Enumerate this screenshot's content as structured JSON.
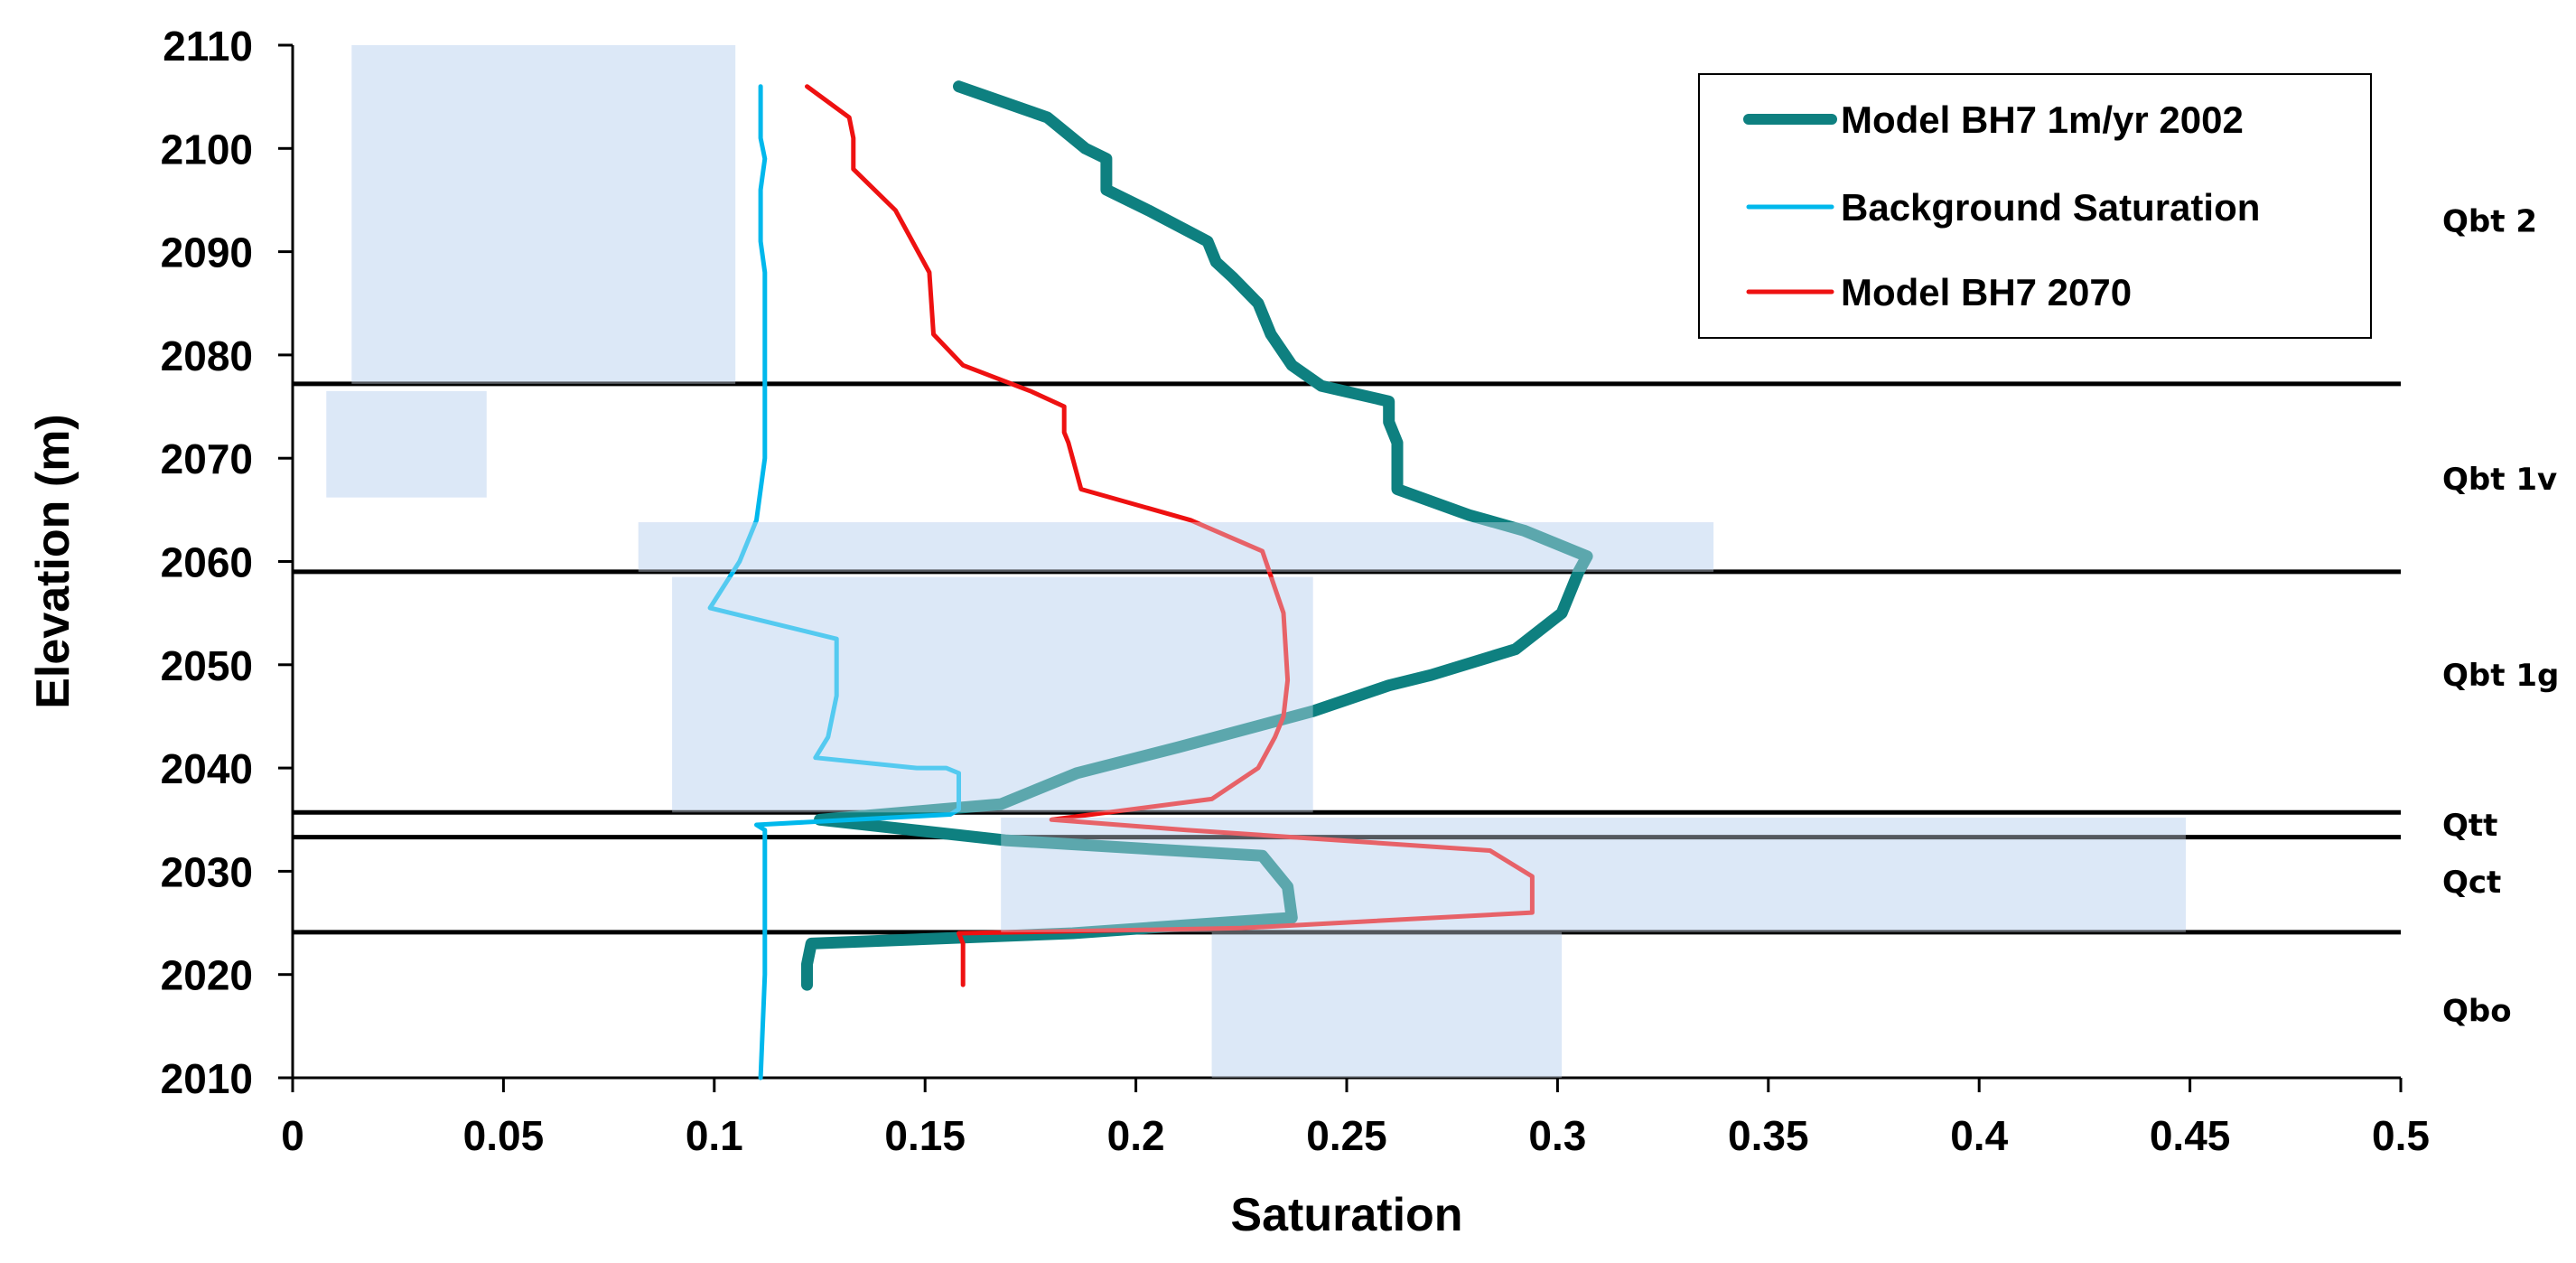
{
  "chart_data": {
    "type": "line",
    "xlabel": "Saturation",
    "ylabel": "Elevation (m)",
    "xlim": [
      0,
      0.5
    ],
    "ylim": [
      2010,
      2110
    ],
    "x_ticks": [
      0,
      0.05,
      0.1,
      0.15,
      0.2,
      0.25,
      0.3,
      0.35,
      0.4,
      0.45,
      0.5
    ],
    "x_tick_labels": [
      "0",
      "0.05",
      "0.1",
      "0.15",
      "0.2",
      "0.25",
      "0.3",
      "0.35",
      "0.4",
      "0.45",
      "0.5"
    ],
    "y_ticks": [
      2010,
      2020,
      2030,
      2040,
      2050,
      2060,
      2070,
      2080,
      2090,
      2100,
      2110
    ],
    "y_tick_labels": [
      "2010",
      "2020",
      "2030",
      "2040",
      "2050",
      "2060",
      "2070",
      "2080",
      "2090",
      "2100",
      "2110"
    ],
    "legend_position": "top-right",
    "series": [
      {
        "name": "Model BH7 1m/yr 2002",
        "color": "#0e8080",
        "points": [
          [
            0.158,
            2106
          ],
          [
            0.179,
            2103
          ],
          [
            0.188,
            2100
          ],
          [
            0.193,
            2099
          ],
          [
            0.193,
            2096
          ],
          [
            0.203,
            2094
          ],
          [
            0.217,
            2091
          ],
          [
            0.219,
            2089
          ],
          [
            0.223,
            2087.5
          ],
          [
            0.229,
            2085
          ],
          [
            0.232,
            2082
          ],
          [
            0.237,
            2079
          ],
          [
            0.244,
            2077
          ],
          [
            0.26,
            2075.5
          ],
          [
            0.26,
            2073.5
          ],
          [
            0.262,
            2071.5
          ],
          [
            0.262,
            2067
          ],
          [
            0.279,
            2064.5
          ],
          [
            0.292,
            2063
          ],
          [
            0.307,
            2060.5
          ],
          [
            0.305,
            2059
          ],
          [
            0.301,
            2055
          ],
          [
            0.29,
            2051.5
          ],
          [
            0.27,
            2049
          ],
          [
            0.26,
            2048
          ],
          [
            0.242,
            2045.5
          ],
          [
            0.21,
            2042
          ],
          [
            0.186,
            2039.5
          ],
          [
            0.168,
            2036.5
          ],
          [
            0.125,
            2035
          ],
          [
            0.169,
            2033
          ],
          [
            0.23,
            2031.5
          ],
          [
            0.236,
            2028.5
          ],
          [
            0.237,
            2025.5
          ],
          [
            0.185,
            2024
          ],
          [
            0.123,
            2023
          ],
          [
            0.122,
            2021
          ],
          [
            0.122,
            2019
          ]
        ]
      },
      {
        "name": "Background Saturation",
        "color": "#00b8ec",
        "points": [
          [
            0.111,
            2106
          ],
          [
            0.111,
            2101
          ],
          [
            0.112,
            2099
          ],
          [
            0.111,
            2096
          ],
          [
            0.111,
            2093
          ],
          [
            0.111,
            2091
          ],
          [
            0.112,
            2088
          ],
          [
            0.112,
            2080
          ],
          [
            0.112,
            2070
          ],
          [
            0.11,
            2064
          ],
          [
            0.106,
            2060
          ],
          [
            0.099,
            2055.5
          ],
          [
            0.129,
            2052.5
          ],
          [
            0.129,
            2047
          ],
          [
            0.127,
            2043
          ],
          [
            0.124,
            2041
          ],
          [
            0.148,
            2040
          ],
          [
            0.155,
            2040
          ],
          [
            0.158,
            2039.5
          ],
          [
            0.158,
            2036
          ],
          [
            0.156,
            2035.5
          ],
          [
            0.11,
            2034.5
          ],
          [
            0.112,
            2034
          ],
          [
            0.112,
            2020
          ],
          [
            0.111,
            2010
          ]
        ]
      },
      {
        "name": "Model BH7 2070",
        "color": "#ee1111",
        "points": [
          [
            0.122,
            2106
          ],
          [
            0.132,
            2103
          ],
          [
            0.133,
            2101
          ],
          [
            0.133,
            2098
          ],
          [
            0.143,
            2094
          ],
          [
            0.151,
            2088
          ],
          [
            0.152,
            2082
          ],
          [
            0.159,
            2079
          ],
          [
            0.175,
            2076.5
          ],
          [
            0.183,
            2075
          ],
          [
            0.183,
            2072.5
          ],
          [
            0.184,
            2071.5
          ],
          [
            0.187,
            2067
          ],
          [
            0.213,
            2064
          ],
          [
            0.23,
            2061
          ],
          [
            0.235,
            2055
          ],
          [
            0.236,
            2048.5
          ],
          [
            0.235,
            2045
          ],
          [
            0.233,
            2043
          ],
          [
            0.229,
            2040
          ],
          [
            0.218,
            2037
          ],
          [
            0.18,
            2035
          ],
          [
            0.212,
            2034
          ],
          [
            0.284,
            2032
          ],
          [
            0.294,
            2029.5
          ],
          [
            0.294,
            2026
          ],
          [
            0.225,
            2024.5
          ],
          [
            0.158,
            2024
          ],
          [
            0.159,
            2023
          ],
          [
            0.159,
            2019
          ]
        ]
      }
    ],
    "layer_boundaries": [
      2077.2,
      2059,
      2035.7,
      2033.3,
      2024.1
    ],
    "layer_labels": [
      {
        "text": "Qbt 2",
        "elevation": 2093
      },
      {
        "text": "Qbt 1v",
        "elevation": 2068
      },
      {
        "text": "Qbt 1g",
        "elevation": 2049
      },
      {
        "text": "Qtt",
        "elevation": 2034.5
      },
      {
        "text": "Qct",
        "elevation": 2029
      },
      {
        "text": "Qbo",
        "elevation": 2016.5
      }
    ],
    "shaded_ranges": [
      {
        "x0": 0.014,
        "x1": 0.105,
        "y0": 2077.2,
        "y1": 2110
      },
      {
        "x0": 0.008,
        "x1": 0.046,
        "y0": 2066.2,
        "y1": 2076.5
      },
      {
        "x0": 0.082,
        "x1": 0.337,
        "y0": 2059,
        "y1": 2063.8
      },
      {
        "x0": 0.09,
        "x1": 0.242,
        "y0": 2035.7,
        "y1": 2058.5
      },
      {
        "x0": 0.168,
        "x1": 0.449,
        "y0": 2024.1,
        "y1": 2035.2
      },
      {
        "x0": 0.218,
        "x1": 0.301,
        "y0": 2010,
        "y1": 2024.1
      }
    ],
    "shade_color": "#dce8f7"
  }
}
